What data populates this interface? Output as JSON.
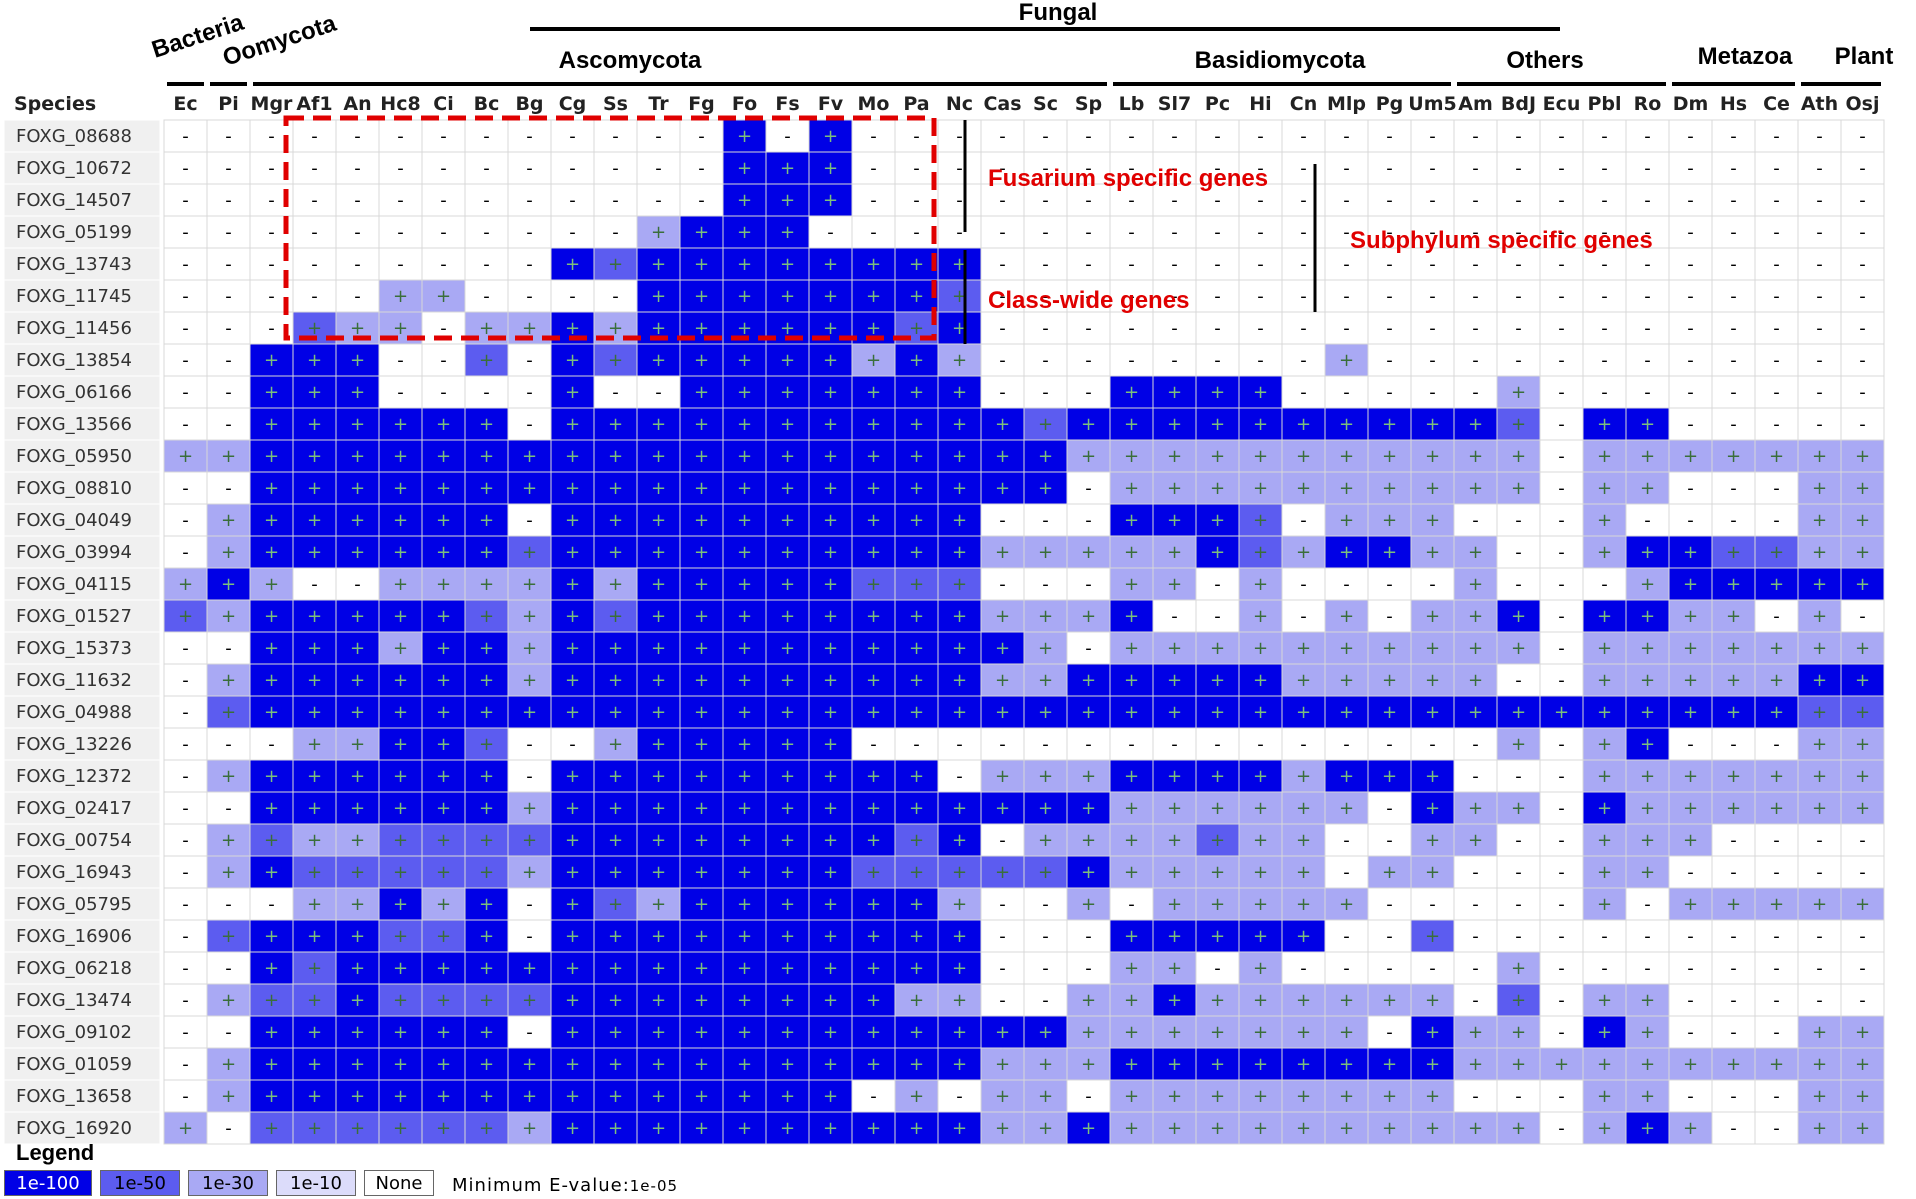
{
  "colors": {
    "l1": "#0000e6",
    "l2": "#5c5cf0",
    "l3": "#a9a9f4",
    "l4": "#dcdcfa",
    "l0": "#ffffff",
    "symbol_on_dark": "#7cc07c",
    "symbol_on_light": "#3a6e3a",
    "annotation": "#e00000"
  },
  "groups": {
    "bacteria": "Bacteria",
    "oomycota": "Oomycota",
    "fungal": "Fungal",
    "ascomycota": "Ascomycota",
    "basidiomycota": "Basidiomycota",
    "others": "Others",
    "metazoa": "Metazoa",
    "plant": "Plant"
  },
  "annotations": {
    "fusarium": "Fusarium specific genes",
    "classwide": "Class-wide genes",
    "subphylum": "Subphylum specific genes"
  },
  "legend": {
    "title": "Legend",
    "items": [
      {
        "label": "1e-100",
        "level": 1
      },
      {
        "label": "1e-50",
        "level": 2
      },
      {
        "label": "1e-30",
        "level": 3
      },
      {
        "label": "1e-10",
        "level": 4
      },
      {
        "label": "None",
        "level": 0
      }
    ],
    "min_label": "Minimum E-value:",
    "min_value": "1e-05"
  },
  "chart_data": {
    "type": "heatmap",
    "row_header": "Species",
    "value_encoding": "E-value level: 1=1e-100, 2=1e-50, 3=1e-30, 4=1e-10, 0=None",
    "columns": [
      "Ec",
      "Pi",
      "Mgr",
      "Af1",
      "An",
      "Hc8",
      "Ci",
      "Bc",
      "Bg",
      "Cg",
      "Ss",
      "Tr",
      "Fg",
      "Fo",
      "Fs",
      "Fv",
      "Mo",
      "Pa",
      "Nc",
      "Cas",
      "Sc",
      "Sp",
      "Lb",
      "Sl7",
      "Pc",
      "Hi",
      "Cn",
      "Mlp",
      "Pg",
      "Um5",
      "Am",
      "BdJ",
      "Ecu",
      "Pbl",
      "Ro",
      "Dm",
      "Hs",
      "Ce",
      "Ath",
      "Osj"
    ],
    "rows": [
      "FOXG_08688",
      "FOXG_10672",
      "FOXG_14507",
      "FOXG_05199",
      "FOXG_13743",
      "FOXG_11745",
      "FOXG_11456",
      "FOXG_13854",
      "FOXG_06166",
      "FOXG_13566",
      "FOXG_05950",
      "FOXG_08810",
      "FOXG_04049",
      "FOXG_03994",
      "FOXG_04115",
      "FOXG_01527",
      "FOXG_15373",
      "FOXG_11632",
      "FOXG_04988",
      "FOXG_13226",
      "FOXG_12372",
      "FOXG_02417",
      "FOXG_00754",
      "FOXG_16943",
      "FOXG_05795",
      "FOXG_16906",
      "FOXG_06218",
      "FOXG_13474",
      "FOXG_09102",
      "FOXG_01059",
      "FOXG_13658",
      "FOXG_16920"
    ],
    "values": [
      [
        0,
        0,
        0,
        0,
        0,
        0,
        0,
        0,
        0,
        0,
        0,
        0,
        0,
        1,
        0,
        1,
        0,
        0,
        0,
        0,
        0,
        0,
        0,
        0,
        0,
        0,
        0,
        0,
        0,
        0,
        0,
        0,
        0,
        0,
        0,
        0,
        0,
        0,
        0,
        0
      ],
      [
        0,
        0,
        0,
        0,
        0,
        0,
        0,
        0,
        0,
        0,
        0,
        0,
        0,
        1,
        1,
        1,
        0,
        0,
        0,
        0,
        0,
        0,
        0,
        0,
        0,
        0,
        0,
        0,
        0,
        0,
        0,
        0,
        0,
        0,
        0,
        0,
        0,
        0,
        0,
        0
      ],
      [
        0,
        0,
        0,
        0,
        0,
        0,
        0,
        0,
        0,
        0,
        0,
        0,
        0,
        1,
        1,
        1,
        0,
        0,
        0,
        0,
        0,
        0,
        0,
        0,
        0,
        0,
        0,
        0,
        0,
        0,
        0,
        0,
        0,
        0,
        0,
        0,
        0,
        0,
        0,
        0
      ],
      [
        0,
        0,
        0,
        0,
        0,
        0,
        0,
        0,
        0,
        0,
        0,
        3,
        1,
        1,
        1,
        0,
        0,
        0,
        0,
        0,
        0,
        0,
        0,
        0,
        0,
        0,
        0,
        0,
        0,
        0,
        0,
        0,
        0,
        0,
        0,
        0,
        0,
        0,
        0,
        0
      ],
      [
        0,
        0,
        0,
        0,
        0,
        0,
        0,
        0,
        0,
        1,
        2,
        1,
        1,
        1,
        1,
        1,
        1,
        1,
        1,
        0,
        0,
        0,
        0,
        0,
        0,
        0,
        0,
        0,
        0,
        0,
        0,
        0,
        0,
        0,
        0,
        0,
        0,
        0,
        0,
        0
      ],
      [
        0,
        0,
        0,
        0,
        0,
        3,
        3,
        0,
        0,
        0,
        0,
        1,
        1,
        1,
        1,
        1,
        1,
        1,
        2,
        0,
        0,
        0,
        0,
        0,
        0,
        0,
        0,
        0,
        0,
        0,
        0,
        0,
        0,
        0,
        0,
        0,
        0,
        0,
        0,
        0
      ],
      [
        0,
        0,
        0,
        2,
        3,
        3,
        0,
        3,
        3,
        1,
        3,
        1,
        1,
        1,
        1,
        1,
        1,
        2,
        1,
        0,
        0,
        0,
        0,
        0,
        0,
        0,
        0,
        0,
        0,
        0,
        0,
        0,
        0,
        0,
        0,
        0,
        0,
        0,
        0,
        0
      ],
      [
        0,
        0,
        1,
        1,
        1,
        0,
        0,
        2,
        0,
        1,
        2,
        1,
        1,
        1,
        1,
        1,
        3,
        1,
        3,
        0,
        0,
        0,
        0,
        0,
        0,
        0,
        0,
        3,
        0,
        0,
        0,
        0,
        0,
        0,
        0,
        0,
        0,
        0,
        0,
        0
      ],
      [
        0,
        0,
        1,
        1,
        1,
        0,
        0,
        0,
        0,
        1,
        0,
        0,
        1,
        1,
        1,
        1,
        1,
        1,
        1,
        0,
        0,
        0,
        1,
        1,
        1,
        1,
        0,
        0,
        0,
        0,
        0,
        3,
        0,
        0,
        0,
        0,
        0,
        0,
        0,
        0
      ],
      [
        0,
        0,
        1,
        1,
        1,
        1,
        1,
        1,
        0,
        1,
        1,
        1,
        1,
        1,
        1,
        1,
        1,
        1,
        1,
        1,
        2,
        1,
        1,
        1,
        1,
        1,
        1,
        1,
        1,
        1,
        1,
        2,
        0,
        1,
        1,
        0,
        0,
        0,
        0,
        0
      ],
      [
        3,
        3,
        1,
        1,
        1,
        1,
        1,
        1,
        1,
        1,
        1,
        1,
        1,
        1,
        1,
        1,
        1,
        1,
        1,
        1,
        1,
        3,
        3,
        3,
        3,
        3,
        3,
        3,
        3,
        3,
        3,
        3,
        0,
        3,
        3,
        3,
        3,
        3,
        3,
        3
      ],
      [
        0,
        0,
        1,
        1,
        1,
        1,
        1,
        1,
        1,
        1,
        1,
        1,
        1,
        1,
        1,
        1,
        1,
        1,
        1,
        1,
        1,
        0,
        3,
        3,
        3,
        3,
        3,
        3,
        3,
        3,
        3,
        3,
        0,
        3,
        3,
        0,
        0,
        0,
        3,
        3
      ],
      [
        0,
        3,
        1,
        1,
        1,
        1,
        1,
        1,
        0,
        1,
        1,
        1,
        1,
        1,
        1,
        1,
        1,
        1,
        1,
        0,
        0,
        0,
        1,
        1,
        1,
        2,
        0,
        3,
        3,
        3,
        0,
        0,
        0,
        3,
        0,
        0,
        0,
        0,
        3,
        3
      ],
      [
        0,
        3,
        1,
        1,
        1,
        1,
        1,
        1,
        2,
        1,
        1,
        1,
        1,
        1,
        1,
        1,
        1,
        1,
        1,
        3,
        3,
        3,
        3,
        3,
        1,
        2,
        3,
        1,
        1,
        3,
        3,
        0,
        0,
        3,
        1,
        1,
        2,
        2,
        3,
        3
      ],
      [
        3,
        1,
        3,
        0,
        0,
        3,
        3,
        3,
        3,
        1,
        3,
        1,
        1,
        1,
        1,
        1,
        2,
        2,
        2,
        0,
        0,
        0,
        3,
        3,
        0,
        3,
        0,
        0,
        0,
        0,
        3,
        0,
        0,
        0,
        3,
        1,
        1,
        1,
        1,
        1
      ],
      [
        2,
        3,
        1,
        1,
        1,
        1,
        1,
        2,
        3,
        1,
        2,
        1,
        1,
        1,
        1,
        1,
        1,
        1,
        1,
        3,
        3,
        3,
        1,
        0,
        0,
        3,
        0,
        3,
        0,
        3,
        3,
        1,
        0,
        1,
        1,
        3,
        3,
        0,
        3,
        0
      ],
      [
        0,
        0,
        1,
        1,
        1,
        3,
        1,
        1,
        3,
        1,
        1,
        1,
        1,
        1,
        1,
        1,
        1,
        1,
        1,
        1,
        3,
        0,
        3,
        3,
        3,
        3,
        3,
        3,
        3,
        3,
        3,
        3,
        0,
        3,
        3,
        3,
        3,
        3,
        3,
        3
      ],
      [
        0,
        3,
        1,
        1,
        1,
        1,
        1,
        1,
        3,
        1,
        1,
        1,
        1,
        1,
        1,
        1,
        1,
        1,
        1,
        3,
        3,
        1,
        1,
        1,
        1,
        1,
        3,
        3,
        3,
        3,
        3,
        0,
        0,
        3,
        3,
        3,
        3,
        3,
        1,
        1
      ],
      [
        0,
        2,
        1,
        1,
        1,
        1,
        1,
        1,
        1,
        1,
        1,
        1,
        1,
        1,
        1,
        1,
        1,
        1,
        1,
        1,
        1,
        1,
        1,
        1,
        1,
        1,
        1,
        1,
        1,
        1,
        1,
        1,
        1,
        1,
        1,
        1,
        1,
        1,
        2,
        2
      ],
      [
        0,
        0,
        0,
        3,
        3,
        1,
        1,
        2,
        0,
        0,
        3,
        1,
        1,
        1,
        1,
        1,
        0,
        0,
        0,
        0,
        0,
        0,
        0,
        0,
        0,
        0,
        0,
        0,
        0,
        0,
        0,
        3,
        0,
        3,
        1,
        0,
        0,
        0,
        3,
        3
      ],
      [
        0,
        3,
        1,
        1,
        1,
        1,
        1,
        1,
        0,
        1,
        1,
        1,
        1,
        1,
        1,
        1,
        1,
        1,
        0,
        3,
        3,
        3,
        1,
        1,
        1,
        1,
        3,
        1,
        1,
        1,
        0,
        0,
        0,
        3,
        3,
        3,
        3,
        3,
        3,
        3
      ],
      [
        0,
        0,
        1,
        1,
        1,
        1,
        1,
        1,
        3,
        1,
        1,
        1,
        1,
        1,
        1,
        1,
        1,
        1,
        1,
        1,
        1,
        1,
        3,
        3,
        3,
        3,
        3,
        3,
        0,
        1,
        3,
        3,
        0,
        1,
        3,
        3,
        3,
        3,
        3,
        3
      ],
      [
        0,
        3,
        2,
        3,
        3,
        2,
        2,
        2,
        2,
        1,
        1,
        1,
        1,
        1,
        1,
        1,
        1,
        2,
        1,
        0,
        3,
        3,
        3,
        3,
        2,
        3,
        3,
        0,
        0,
        3,
        3,
        0,
        0,
        3,
        3,
        3,
        0,
        0,
        0,
        0
      ],
      [
        0,
        3,
        1,
        2,
        2,
        2,
        2,
        2,
        3,
        1,
        1,
        1,
        1,
        1,
        1,
        1,
        2,
        2,
        2,
        2,
        2,
        1,
        3,
        3,
        3,
        3,
        3,
        0,
        3,
        3,
        0,
        0,
        0,
        3,
        3,
        0,
        0,
        0,
        0,
        0
      ],
      [
        0,
        0,
        0,
        3,
        3,
        1,
        3,
        1,
        0,
        1,
        2,
        3,
        1,
        1,
        1,
        1,
        1,
        1,
        3,
        0,
        0,
        3,
        0,
        3,
        3,
        3,
        3,
        3,
        0,
        0,
        0,
        0,
        0,
        3,
        0,
        3,
        3,
        3,
        3,
        3
      ],
      [
        0,
        2,
        1,
        1,
        1,
        2,
        2,
        1,
        0,
        1,
        1,
        1,
        1,
        1,
        1,
        1,
        1,
        1,
        1,
        0,
        0,
        0,
        1,
        1,
        1,
        1,
        1,
        0,
        0,
        2,
        0,
        0,
        0,
        0,
        0,
        0,
        0,
        0,
        0,
        0
      ],
      [
        0,
        0,
        1,
        2,
        1,
        1,
        1,
        1,
        1,
        1,
        1,
        1,
        1,
        1,
        1,
        1,
        1,
        1,
        1,
        0,
        0,
        0,
        3,
        3,
        0,
        3,
        0,
        0,
        0,
        0,
        0,
        3,
        0,
        0,
        0,
        0,
        0,
        0,
        0,
        0
      ],
      [
        0,
        3,
        2,
        2,
        1,
        2,
        2,
        2,
        2,
        1,
        1,
        1,
        1,
        1,
        1,
        1,
        1,
        3,
        3,
        0,
        0,
        3,
        3,
        1,
        3,
        3,
        3,
        3,
        3,
        3,
        0,
        2,
        0,
        3,
        3,
        0,
        0,
        0,
        0,
        0
      ],
      [
        0,
        0,
        1,
        1,
        1,
        1,
        1,
        1,
        0,
        1,
        1,
        1,
        1,
        1,
        1,
        1,
        1,
        1,
        1,
        1,
        1,
        3,
        3,
        3,
        3,
        3,
        3,
        3,
        0,
        1,
        3,
        3,
        0,
        1,
        3,
        0,
        0,
        0,
        3,
        3
      ],
      [
        0,
        3,
        1,
        1,
        1,
        1,
        1,
        1,
        1,
        1,
        1,
        1,
        1,
        1,
        1,
        1,
        1,
        1,
        1,
        3,
        3,
        3,
        1,
        1,
        1,
        1,
        1,
        1,
        1,
        1,
        3,
        3,
        3,
        3,
        3,
        3,
        3,
        3,
        3,
        3
      ],
      [
        0,
        3,
        1,
        1,
        1,
        1,
        1,
        1,
        1,
        1,
        1,
        1,
        1,
        1,
        1,
        1,
        0,
        3,
        0,
        3,
        3,
        0,
        3,
        3,
        3,
        3,
        3,
        3,
        3,
        3,
        0,
        0,
        0,
        3,
        3,
        0,
        0,
        0,
        3,
        3
      ],
      [
        3,
        0,
        2,
        2,
        2,
        2,
        2,
        2,
        3,
        1,
        1,
        1,
        1,
        1,
        1,
        1,
        1,
        1,
        1,
        3,
        3,
        1,
        3,
        3,
        3,
        3,
        3,
        3,
        3,
        3,
        3,
        3,
        0,
        3,
        1,
        3,
        0,
        0,
        3,
        3
      ]
    ]
  }
}
